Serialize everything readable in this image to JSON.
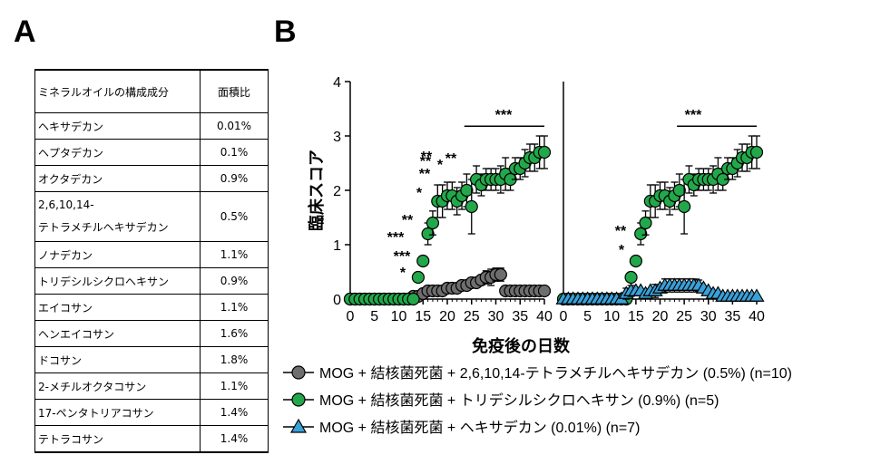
{
  "panels": {
    "a": "A",
    "b": "B"
  },
  "table": {
    "headers": [
      "ミネラルオイルの構成成分",
      "面積比"
    ],
    "rows": [
      {
        "name": "ヘキサデカン",
        "ratio": "0.01%"
      },
      {
        "name": "ヘプタデカン",
        "ratio": "0.1%"
      },
      {
        "name": "オクタデカン",
        "ratio": "0.9%"
      },
      {
        "name": "2,6,10,14-\nテトラメチルヘキサデカン",
        "ratio": "0.5%"
      },
      {
        "name": "ノナデカン",
        "ratio": "1.1%"
      },
      {
        "name": "トリデシルシクロヘキサン",
        "ratio": "0.9%"
      },
      {
        "name": "エイコサン",
        "ratio": "1.1%"
      },
      {
        "name": "ヘンエイコサン",
        "ratio": "1.6%"
      },
      {
        "name": "ドコサン",
        "ratio": "1.8%"
      },
      {
        "name": "2-メチルオクタコサン",
        "ratio": "1.1%"
      },
      {
        "name": "17-ペンタトリアコサン",
        "ratio": "1.4%"
      },
      {
        "name": "テトラコサン",
        "ratio": "1.4%"
      }
    ]
  },
  "chart_data": [
    {
      "type": "scatter",
      "ylabel": "臨床スコア",
      "xlabel": "免疫後の日数",
      "xlim": [
        0,
        40
      ],
      "ylim": [
        0,
        4
      ],
      "x_ticks": [
        0,
        5,
        10,
        15,
        20,
        25,
        30,
        35,
        40
      ],
      "y_ticks": [
        0,
        1,
        2,
        3,
        4
      ],
      "series": [
        {
          "name": "MOG + 結核菌死菌 + 2,6,10,14-テトラメチルヘキサデカン (0.5%) (n=10)",
          "color": "#6e6e6e",
          "marker": "circle",
          "x": [
            0,
            1,
            2,
            3,
            4,
            5,
            6,
            7,
            8,
            9,
            10,
            11,
            12,
            13,
            14,
            15,
            16,
            17,
            18,
            19,
            20,
            21,
            22,
            23,
            24,
            25,
            26,
            27,
            28,
            29,
            30,
            31,
            32,
            33,
            34,
            35,
            36,
            37,
            38,
            39,
            40
          ],
          "y": [
            0,
            0,
            0,
            0,
            0,
            0,
            0,
            0,
            0,
            0,
            0,
            0,
            0,
            0.05,
            0.05,
            0.1,
            0.15,
            0.15,
            0.15,
            0.15,
            0.2,
            0.2,
            0.2,
            0.25,
            0.25,
            0.3,
            0.3,
            0.35,
            0.4,
            0.4,
            0.45,
            0.45,
            0.15,
            0.15,
            0.15,
            0.15,
            0.15,
            0.15,
            0.15,
            0.15,
            0.15
          ]
        },
        {
          "name": "MOG + 結核菌死菌 +  トリデシルシクロヘキサン (0.9%) (n=5)",
          "color": "#22a84a",
          "marker": "circle",
          "x": [
            0,
            1,
            2,
            3,
            4,
            5,
            6,
            7,
            8,
            9,
            10,
            11,
            12,
            13,
            14,
            15,
            16,
            17,
            18,
            19,
            20,
            21,
            22,
            23,
            24,
            25,
            26,
            27,
            28,
            29,
            30,
            31,
            32,
            33,
            34,
            35,
            36,
            37,
            38,
            39,
            40
          ],
          "y": [
            0,
            0,
            0,
            0,
            0,
            0,
            0,
            0,
            0,
            0,
            0,
            0,
            0,
            0,
            0.4,
            0.7,
            1.2,
            1.4,
            1.8,
            1.8,
            1.9,
            1.9,
            1.8,
            1.9,
            2.0,
            1.7,
            2.2,
            2.1,
            2.2,
            2.2,
            2.2,
            2.2,
            2.3,
            2.2,
            2.4,
            2.4,
            2.5,
            2.6,
            2.6,
            2.7,
            2.7
          ]
        }
      ],
      "annotations": [
        "*",
        "**",
        "***",
        "***",
        "**",
        "*",
        "**",
        "*",
        "**",
        "**",
        "***"
      ]
    },
    {
      "type": "scatter",
      "xlim": [
        0,
        40
      ],
      "ylim": [
        0,
        4
      ],
      "x_ticks": [
        0,
        5,
        10,
        15,
        20,
        25,
        30,
        35,
        40
      ],
      "series": [
        {
          "name": "MOG + 結核菌死菌 +  トリデシルシクロヘキサン (0.9%) (n=5)",
          "color": "#22a84a",
          "marker": "circle",
          "x": [
            0,
            1,
            2,
            3,
            4,
            5,
            6,
            7,
            8,
            9,
            10,
            11,
            12,
            13,
            14,
            15,
            16,
            17,
            18,
            19,
            20,
            21,
            22,
            23,
            24,
            25,
            26,
            27,
            28,
            29,
            30,
            31,
            32,
            33,
            34,
            35,
            36,
            37,
            38,
            39,
            40
          ],
          "y": [
            0,
            0,
            0,
            0,
            0,
            0,
            0,
            0,
            0,
            0,
            0,
            0,
            0,
            0,
            0.4,
            0.7,
            1.2,
            1.4,
            1.8,
            1.8,
            1.9,
            1.9,
            1.8,
            1.9,
            2.0,
            1.7,
            2.2,
            2.1,
            2.2,
            2.2,
            2.2,
            2.2,
            2.3,
            2.2,
            2.4,
            2.4,
            2.5,
            2.6,
            2.6,
            2.7,
            2.7
          ]
        },
        {
          "name": "MOG + 結核菌死菌 +  ヘキサデカン (0.01%) (n=7)",
          "color": "#3aa0d8",
          "marker": "triangle",
          "x": [
            0,
            1,
            2,
            3,
            4,
            5,
            6,
            7,
            8,
            9,
            10,
            11,
            12,
            13,
            14,
            15,
            16,
            17,
            18,
            19,
            20,
            21,
            22,
            23,
            24,
            25,
            26,
            27,
            28,
            29,
            30,
            31,
            32,
            33,
            34,
            35,
            36,
            37,
            38,
            39,
            40
          ],
          "y": [
            0,
            0,
            0,
            0,
            0,
            0,
            0,
            0,
            0,
            0,
            0,
            0,
            0,
            0.1,
            0.15,
            0.15,
            0.15,
            0.1,
            0.15,
            0.15,
            0.2,
            0.25,
            0.25,
            0.25,
            0.25,
            0.25,
            0.25,
            0.25,
            0.25,
            0.2,
            0.15,
            0.1,
            0.1,
            0.05,
            0.05,
            0.05,
            0.05,
            0.05,
            0.05,
            0.05,
            0.05
          ]
        }
      ],
      "annotations": [
        "*",
        "**",
        "***"
      ]
    }
  ]
}
